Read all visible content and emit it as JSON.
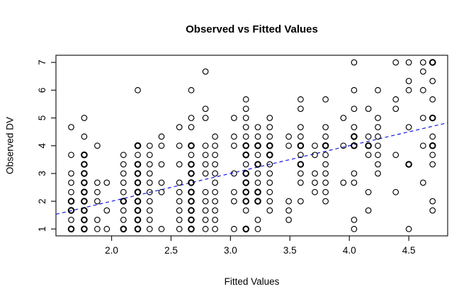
{
  "chart_data": {
    "type": "scatter",
    "title": "Observed vs Fitted Values",
    "xlabel": "Fitted Values",
    "ylabel": "Observed DV",
    "xlim": [
      1.532,
      4.827
    ],
    "ylim": [
      0.753,
      7.258
    ],
    "x_ticks": [
      2.0,
      2.5,
      3.0,
      3.5,
      4.0,
      4.5
    ],
    "x_tick_labels": [
      "2.0",
      "2.5",
      "3.0",
      "3.5",
      "4.0",
      "4.5"
    ],
    "y_ticks": [
      1,
      2,
      3,
      4,
      5,
      6,
      7
    ],
    "y_tick_labels": [
      "1",
      "2",
      "3",
      "4",
      "5",
      "6",
      "7"
    ],
    "grid": false,
    "legend": null,
    "marker": {
      "shape": "open-circle",
      "color": "#000000"
    },
    "reference_line": {
      "name": "identity-line",
      "slope": 1,
      "intercept": 0,
      "style": "dashed",
      "color": "#1414e0"
    },
    "points": [
      [
        1.66,
        4.67
      ],
      [
        1.66,
        3.67
      ],
      [
        1.66,
        3.0
      ],
      [
        1.66,
        2.67
      ],
      [
        1.66,
        2.33
      ],
      [
        1.66,
        2.0,
        2
      ],
      [
        1.66,
        1.67,
        2
      ],
      [
        1.66,
        1.33
      ],
      [
        1.66,
        1.0,
        2
      ],
      [
        1.77,
        5.0
      ],
      [
        1.77,
        4.33
      ],
      [
        1.77,
        3.67,
        2
      ],
      [
        1.77,
        3.33,
        2
      ],
      [
        1.77,
        3.0,
        2
      ],
      [
        1.77,
        2.67,
        2
      ],
      [
        1.77,
        2.33,
        2
      ],
      [
        1.77,
        2.0,
        2
      ],
      [
        1.77,
        1.67,
        2
      ],
      [
        1.77,
        1.33,
        2
      ],
      [
        1.77,
        1.0,
        2
      ],
      [
        1.88,
        4.0
      ],
      [
        1.88,
        2.67
      ],
      [
        1.88,
        2.33
      ],
      [
        1.88,
        2.0
      ],
      [
        1.88,
        1.33
      ],
      [
        1.88,
        1.0
      ],
      [
        1.96,
        2.67
      ],
      [
        1.96,
        1.67
      ],
      [
        1.96,
        1.0
      ],
      [
        2.1,
        3.67
      ],
      [
        2.1,
        3.33
      ],
      [
        2.1,
        3.0
      ],
      [
        2.1,
        2.67
      ],
      [
        2.1,
        2.33
      ],
      [
        2.1,
        2.0,
        2
      ],
      [
        2.1,
        1.67
      ],
      [
        2.1,
        1.33
      ],
      [
        2.1,
        1.0,
        2
      ],
      [
        2.22,
        6.0
      ],
      [
        2.22,
        4.0,
        2
      ],
      [
        2.22,
        3.67
      ],
      [
        2.22,
        3.33,
        2
      ],
      [
        2.22,
        3.0,
        2
      ],
      [
        2.22,
        2.67,
        2
      ],
      [
        2.22,
        2.33,
        2
      ],
      [
        2.22,
        2.0,
        2
      ],
      [
        2.22,
        1.67,
        2
      ],
      [
        2.22,
        1.33,
        2
      ],
      [
        2.22,
        1.0,
        2
      ],
      [
        2.32,
        4.0
      ],
      [
        2.32,
        3.67
      ],
      [
        2.32,
        3.33
      ],
      [
        2.32,
        3.0
      ],
      [
        2.32,
        2.67
      ],
      [
        2.32,
        2.33
      ],
      [
        2.32,
        2.0
      ],
      [
        2.32,
        1.67
      ],
      [
        2.32,
        1.33
      ],
      [
        2.32,
        1.0
      ],
      [
        2.42,
        4.33
      ],
      [
        2.42,
        4.0
      ],
      [
        2.42,
        3.33
      ],
      [
        2.42,
        2.67
      ],
      [
        2.42,
        2.33
      ],
      [
        2.42,
        1.0
      ],
      [
        2.57,
        4.67
      ],
      [
        2.57,
        4.0
      ],
      [
        2.57,
        3.33
      ],
      [
        2.57,
        2.67
      ],
      [
        2.57,
        2.33
      ],
      [
        2.57,
        2.0
      ],
      [
        2.57,
        1.67
      ],
      [
        2.57,
        1.33
      ],
      [
        2.57,
        1.0
      ],
      [
        2.67,
        6.0
      ],
      [
        2.67,
        5.0
      ],
      [
        2.67,
        4.67
      ],
      [
        2.67,
        4.0,
        2
      ],
      [
        2.67,
        3.67
      ],
      [
        2.67,
        3.33,
        2
      ],
      [
        2.67,
        3.0,
        2
      ],
      [
        2.67,
        2.67,
        2
      ],
      [
        2.67,
        2.33,
        2
      ],
      [
        2.67,
        2.0,
        2
      ],
      [
        2.67,
        1.67,
        2
      ],
      [
        2.67,
        1.33,
        2
      ],
      [
        2.67,
        1.0,
        2
      ],
      [
        2.79,
        6.67
      ],
      [
        2.79,
        5.33
      ],
      [
        2.79,
        5.0
      ],
      [
        2.79,
        4.0
      ],
      [
        2.79,
        3.67
      ],
      [
        2.79,
        3.33
      ],
      [
        2.79,
        3.0
      ],
      [
        2.79,
        2.33
      ],
      [
        2.79,
        2.0
      ],
      [
        2.79,
        1.67
      ],
      [
        2.79,
        1.33
      ],
      [
        2.79,
        1.0
      ],
      [
        2.87,
        4.33
      ],
      [
        2.87,
        4.0
      ],
      [
        2.87,
        3.67
      ],
      [
        2.87,
        3.33
      ],
      [
        2.87,
        3.0
      ],
      [
        2.87,
        2.67
      ],
      [
        2.87,
        2.33
      ],
      [
        2.87,
        2.0
      ],
      [
        2.87,
        1.67
      ],
      [
        2.87,
        1.33
      ],
      [
        2.87,
        1.0
      ],
      [
        3.03,
        5.0
      ],
      [
        3.03,
        4.33
      ],
      [
        3.03,
        4.0
      ],
      [
        3.03,
        3.0
      ],
      [
        3.03,
        2.33
      ],
      [
        3.03,
        2.0
      ],
      [
        3.03,
        1.0
      ],
      [
        3.13,
        5.67
      ],
      [
        3.13,
        5.33
      ],
      [
        3.13,
        5.0
      ],
      [
        3.13,
        4.67
      ],
      [
        3.13,
        4.33
      ],
      [
        3.13,
        4.0,
        2
      ],
      [
        3.13,
        3.67,
        2
      ],
      [
        3.13,
        3.33
      ],
      [
        3.13,
        3.0,
        2
      ],
      [
        3.13,
        2.67,
        2
      ],
      [
        3.13,
        2.33,
        2
      ],
      [
        3.13,
        2.0,
        2
      ],
      [
        3.13,
        1.67
      ],
      [
        3.13,
        1.0,
        2
      ],
      [
        3.23,
        4.67
      ],
      [
        3.23,
        4.33
      ],
      [
        3.23,
        4.0,
        2
      ],
      [
        3.23,
        3.67
      ],
      [
        3.23,
        3.33,
        2
      ],
      [
        3.23,
        3.0
      ],
      [
        3.23,
        2.67
      ],
      [
        3.23,
        2.33,
        2
      ],
      [
        3.23,
        2.0,
        2
      ],
      [
        3.23,
        1.33
      ],
      [
        3.23,
        1.0
      ],
      [
        3.33,
        5.0
      ],
      [
        3.33,
        4.67
      ],
      [
        3.33,
        4.33
      ],
      [
        3.33,
        4.0,
        2
      ],
      [
        3.33,
        3.67,
        2
      ],
      [
        3.33,
        3.33
      ],
      [
        3.33,
        3.0
      ],
      [
        3.33,
        2.67
      ],
      [
        3.33,
        2.33
      ],
      [
        3.33,
        2.0
      ],
      [
        3.33,
        1.67
      ],
      [
        3.49,
        4.33
      ],
      [
        3.49,
        4.0
      ],
      [
        3.49,
        2.0
      ],
      [
        3.49,
        1.67
      ],
      [
        3.49,
        1.33
      ],
      [
        3.59,
        5.67
      ],
      [
        3.59,
        5.33
      ],
      [
        3.59,
        4.67
      ],
      [
        3.59,
        4.33
      ],
      [
        3.59,
        4.0,
        2
      ],
      [
        3.59,
        3.67
      ],
      [
        3.59,
        3.33,
        2
      ],
      [
        3.59,
        3.0
      ],
      [
        3.59,
        2.67
      ],
      [
        3.59,
        2.0
      ],
      [
        3.71,
        4.0
      ],
      [
        3.71,
        3.67
      ],
      [
        3.71,
        3.0
      ],
      [
        3.71,
        2.67
      ],
      [
        3.71,
        2.33
      ],
      [
        3.8,
        5.67
      ],
      [
        3.8,
        4.67
      ],
      [
        3.8,
        4.33
      ],
      [
        3.8,
        4.0,
        2
      ],
      [
        3.8,
        3.67
      ],
      [
        3.8,
        3.33
      ],
      [
        3.8,
        3.0
      ],
      [
        3.8,
        2.67
      ],
      [
        3.8,
        2.33
      ],
      [
        3.8,
        2.0
      ],
      [
        3.95,
        5.0
      ],
      [
        3.95,
        4.0
      ],
      [
        3.95,
        2.67
      ],
      [
        4.04,
        7.0
      ],
      [
        4.04,
        6.0
      ],
      [
        4.04,
        5.33
      ],
      [
        4.04,
        4.67
      ],
      [
        4.04,
        4.33,
        2
      ],
      [
        4.04,
        4.0,
        2
      ],
      [
        4.04,
        3.0
      ],
      [
        4.04,
        2.67
      ],
      [
        4.04,
        1.33
      ],
      [
        4.04,
        1.0
      ],
      [
        4.16,
        5.33
      ],
      [
        4.16,
        4.33
      ],
      [
        4.16,
        4.0,
        2
      ],
      [
        4.16,
        3.67
      ],
      [
        4.16,
        2.33
      ],
      [
        4.16,
        1.67
      ],
      [
        4.24,
        6.0
      ],
      [
        4.24,
        5.0
      ],
      [
        4.24,
        4.67
      ],
      [
        4.24,
        4.33
      ],
      [
        4.24,
        4.0
      ],
      [
        4.24,
        3.67
      ],
      [
        4.24,
        3.33
      ],
      [
        4.24,
        3.0
      ],
      [
        4.39,
        7.0
      ],
      [
        4.39,
        5.67
      ],
      [
        4.39,
        5.33
      ],
      [
        4.39,
        3.67
      ],
      [
        4.39,
        2.33
      ],
      [
        4.5,
        7.0
      ],
      [
        4.5,
        6.33
      ],
      [
        4.5,
        6.0
      ],
      [
        4.5,
        4.67
      ],
      [
        4.5,
        3.33,
        2
      ],
      [
        4.5,
        1.0
      ],
      [
        4.62,
        7.0
      ],
      [
        4.62,
        6.67
      ],
      [
        4.62,
        6.0
      ],
      [
        4.62,
        5.0
      ],
      [
        4.62,
        4.0
      ],
      [
        4.62,
        2.67
      ],
      [
        4.7,
        7.0,
        2
      ],
      [
        4.7,
        6.33
      ],
      [
        4.7,
        5.67
      ],
      [
        4.7,
        5.0,
        2
      ],
      [
        4.7,
        4.33
      ],
      [
        4.7,
        4.0,
        2
      ],
      [
        4.7,
        3.67
      ],
      [
        4.7,
        3.33
      ],
      [
        4.7,
        2.0
      ],
      [
        4.7,
        1.67
      ]
    ]
  }
}
